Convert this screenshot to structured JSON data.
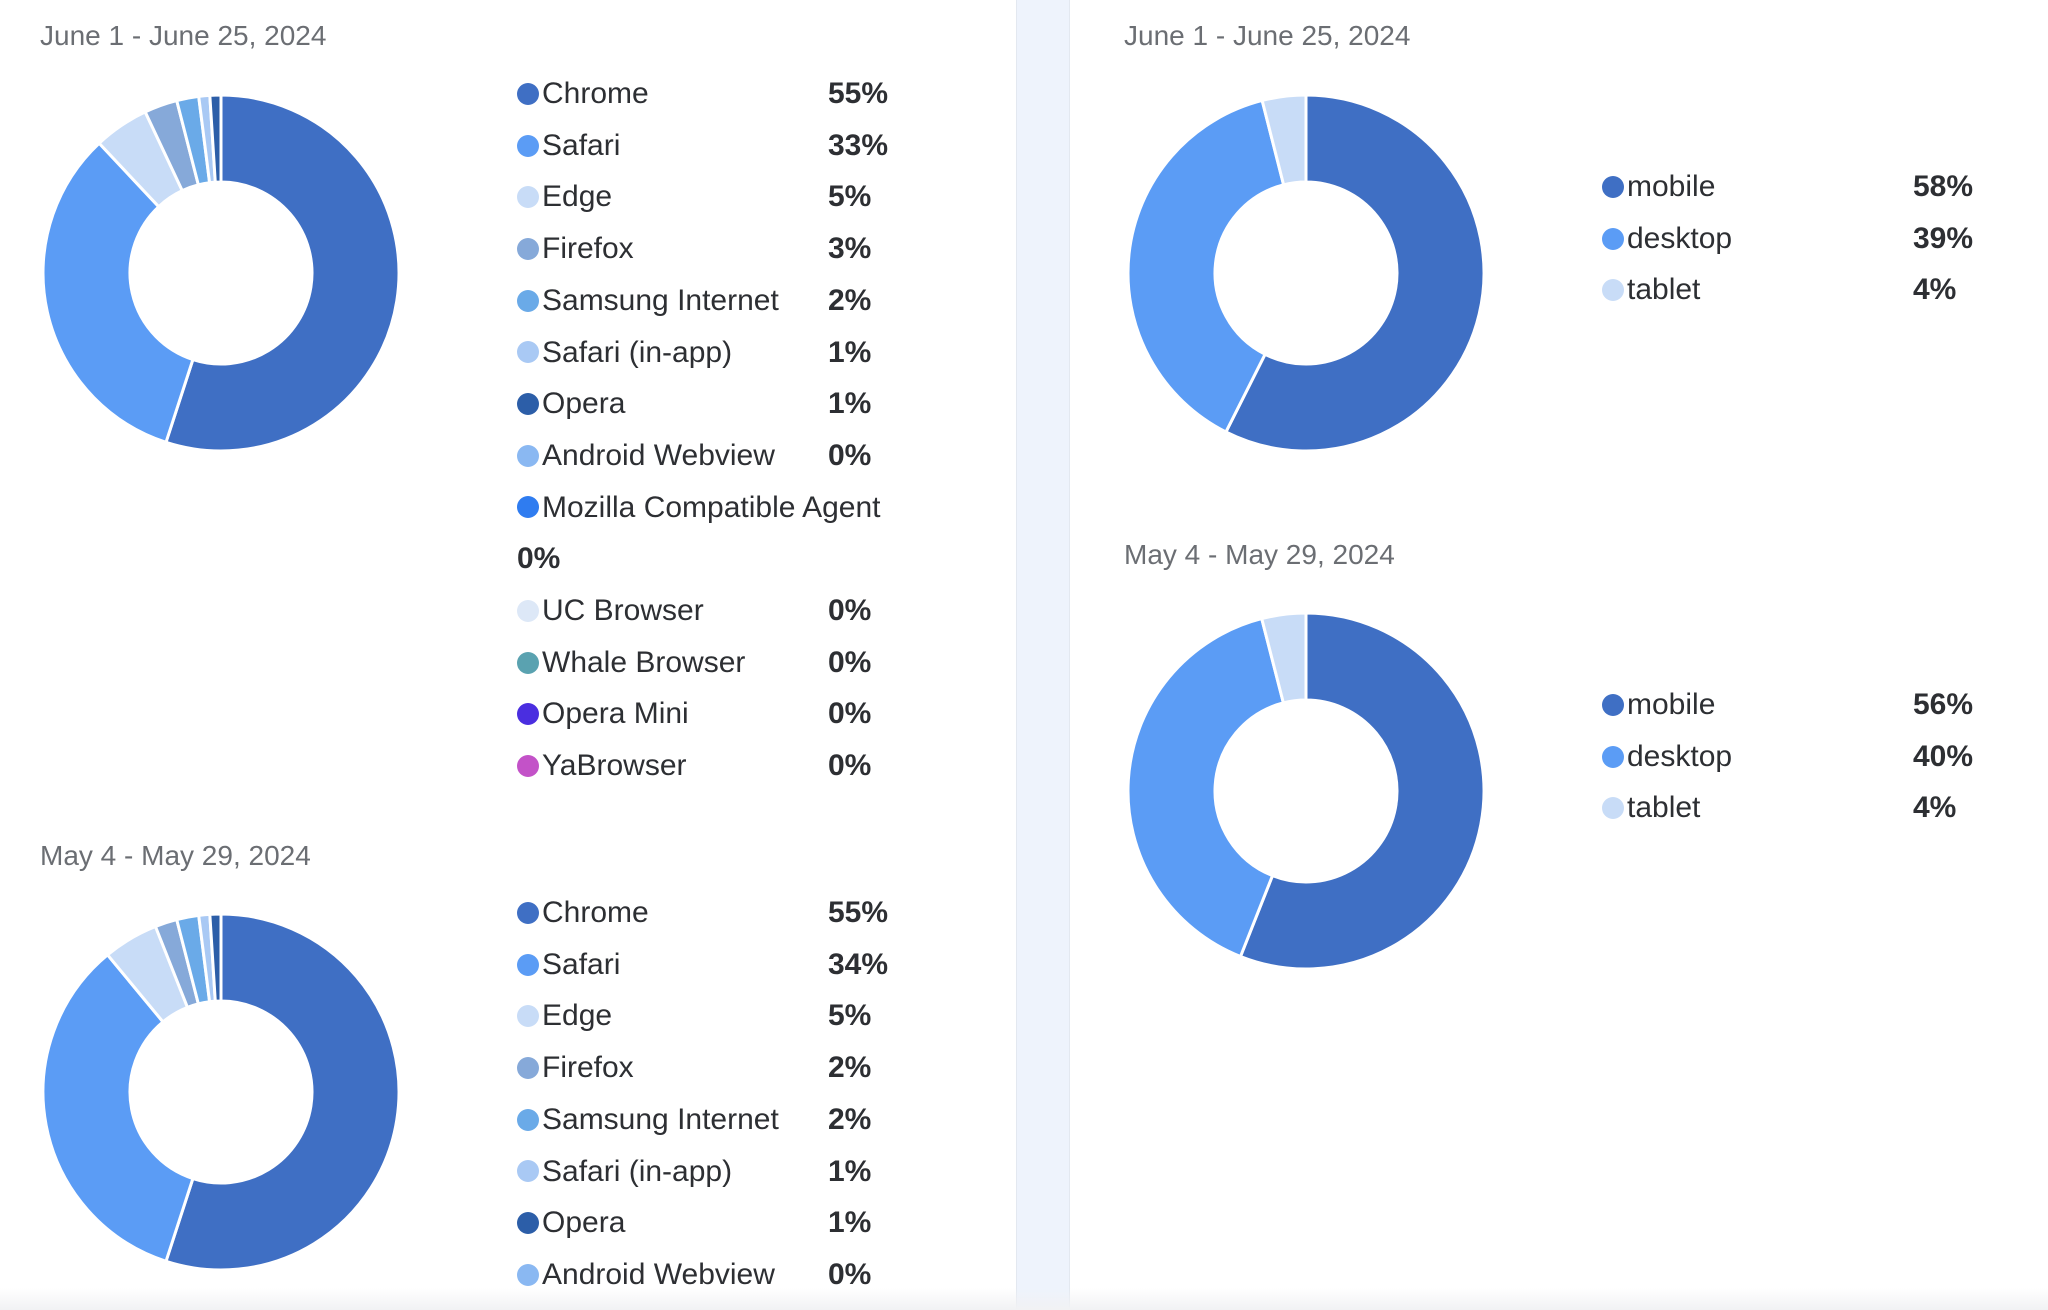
{
  "chart_data": [
    {
      "type": "pie",
      "subtype": "donut",
      "title": "June 1 - June 25, 2024",
      "categories": [
        "Chrome",
        "Safari",
        "Edge",
        "Firefox",
        "Samsung Internet",
        "Safari (in-app)",
        "Opera",
        "Android Webview",
        "Mozilla Compatible Agent",
        "UC Browser",
        "Whale Browser",
        "Opera Mini",
        "YaBrowser"
      ],
      "values": [
        55,
        33,
        5,
        3,
        2,
        1,
        1,
        0,
        0,
        0,
        0,
        0,
        0
      ],
      "labels": [
        "55%",
        "33%",
        "5%",
        "3%",
        "2%",
        "1%",
        "1%",
        "0%",
        "0%",
        "0%",
        "0%",
        "0%",
        "0%"
      ],
      "colors": [
        "#3f6fc4",
        "#5b9cf5",
        "#c8dcf7",
        "#86a9d9",
        "#6aaae8",
        "#a9c9f4",
        "#2c5ea8",
        "#8ab8f2",
        "#2f7cf0",
        "#dde8f7",
        "#5aa2b0",
        "#4a2ee0",
        "#c352c8"
      ],
      "legend": "right"
    },
    {
      "type": "pie",
      "subtype": "donut",
      "title": "May 4 - May 29, 2024",
      "categories": [
        "Chrome",
        "Safari",
        "Edge",
        "Firefox",
        "Samsung Internet",
        "Safari (in-app)",
        "Opera",
        "Android Webview"
      ],
      "values": [
        55,
        34,
        5,
        2,
        2,
        1,
        1,
        0
      ],
      "labels": [
        "55%",
        "34%",
        "5%",
        "2%",
        "2%",
        "1%",
        "1%",
        "0%"
      ],
      "colors": [
        "#3f6fc4",
        "#5b9cf5",
        "#c8dcf7",
        "#86a9d9",
        "#6aaae8",
        "#a9c9f4",
        "#2c5ea8",
        "#8ab8f2"
      ],
      "legend": "right"
    },
    {
      "type": "pie",
      "subtype": "donut",
      "title": "June 1 - June 25, 2024",
      "categories": [
        "mobile",
        "desktop",
        "tablet"
      ],
      "values": [
        58,
        39,
        4
      ],
      "labels": [
        "58%",
        "39%",
        "4%"
      ],
      "colors": [
        "#3f6fc4",
        "#5b9cf5",
        "#c8dcf7"
      ],
      "legend": "right"
    },
    {
      "type": "pie",
      "subtype": "donut",
      "title": "May 4 - May 29, 2024",
      "categories": [
        "mobile",
        "desktop",
        "tablet"
      ],
      "values": [
        56,
        40,
        4
      ],
      "labels": [
        "56%",
        "40%",
        "4%"
      ],
      "colors": [
        "#3f6fc4",
        "#5b9cf5",
        "#c8dcf7"
      ],
      "legend": "right"
    }
  ]
}
